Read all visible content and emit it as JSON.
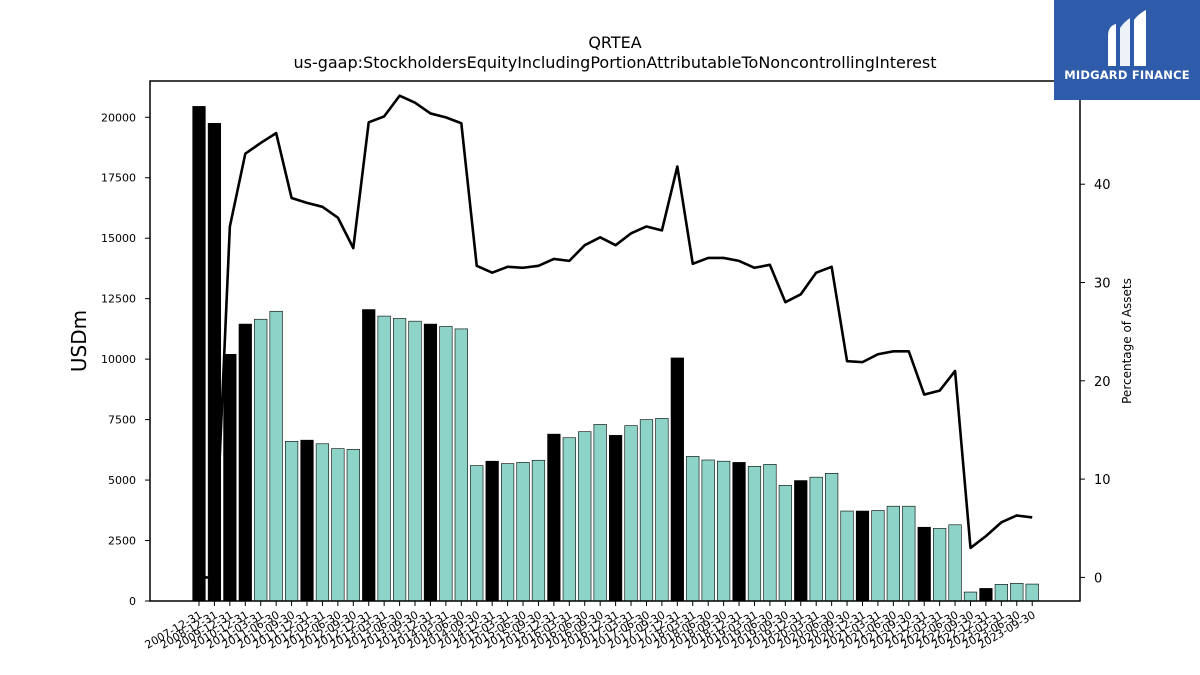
{
  "logo": {
    "text": "MIDGARD FINANCE",
    "bg_color": "#2e5caa"
  },
  "chart_data": {
    "type": "bar",
    "title": "QRTEA",
    "subtitle": "us-gaap:StockholdersEquityIncludingPortionAttributableToNoncontrollingInterest",
    "ylabel": "USDm",
    "ylabel_right": "Percentage of Assets",
    "ylim": [
      0,
      21500
    ],
    "ylim_right": [
      -2.4,
      50.5
    ],
    "yticks": [
      0,
      2500,
      5000,
      7500,
      10000,
      12500,
      15000,
      17500,
      20000
    ],
    "yticks_right": [
      0,
      10,
      20,
      30,
      40
    ],
    "colors": {
      "annual": "#000000",
      "quarterly": "#8dd3c7",
      "line": "#000000"
    },
    "categories": [
      "2007-12-31",
      "2008-12-31",
      "2009-12-31",
      "2010-12-31",
      "2011-03-31",
      "2011-06-30",
      "2011-09-30",
      "2011-12-31",
      "2012-03-31",
      "2012-06-30",
      "2012-09-30",
      "2012-12-31",
      "2013-03-31",
      "2013-06-30",
      "2013-09-30",
      "2013-12-31",
      "2014-03-31",
      "2014-06-30",
      "2014-09-30",
      "2014-12-31",
      "2015-03-31",
      "2015-06-30",
      "2015-09-30",
      "2015-12-31",
      "2016-03-31",
      "2016-06-30",
      "2016-09-30",
      "2016-12-31",
      "2017-03-31",
      "2017-06-30",
      "2017-09-30",
      "2017-12-31",
      "2018-03-31",
      "2018-06-30",
      "2018-09-30",
      "2018-12-31",
      "2019-03-31",
      "2019-06-30",
      "2019-09-30",
      "2019-12-31",
      "2020-03-31",
      "2020-06-30",
      "2020-09-30",
      "2020-12-31",
      "2021-03-31",
      "2021-06-30",
      "2021-09-30",
      "2021-12-31",
      "2022-03-31",
      "2022-06-30",
      "2022-09-30",
      "2022-12-31",
      "2023-03-31",
      "2023-06-30",
      "2023-09-30"
    ],
    "series": [
      {
        "kind": "bar",
        "values": [
          20450,
          19750,
          10200,
          11450,
          11650,
          11980,
          6600,
          6650,
          6500,
          6300,
          6270,
          12050,
          11780,
          11680,
          11570,
          11450,
          11350,
          11250,
          5600,
          5780,
          5680,
          5730,
          5820,
          6900,
          6750,
          7000,
          7300,
          6850,
          7250,
          7500,
          7550,
          10050,
          5980,
          5830,
          5780,
          5730,
          5570,
          5650,
          4780,
          4980,
          5120,
          5280,
          3720,
          3720,
          3740,
          3920,
          3920,
          3050,
          3000,
          3150,
          370,
          520,
          690,
          730,
          700
        ],
        "annual": [
          true,
          true,
          true,
          true,
          false,
          false,
          false,
          true,
          false,
          false,
          false,
          true,
          false,
          false,
          false,
          true,
          false,
          false,
          false,
          true,
          false,
          false,
          false,
          true,
          false,
          false,
          false,
          true,
          false,
          false,
          false,
          true,
          false,
          false,
          false,
          true,
          false,
          false,
          false,
          true,
          false,
          false,
          false,
          true,
          false,
          false,
          false,
          true,
          false,
          false,
          false,
          true,
          false,
          false,
          false
        ]
      },
      {
        "kind": "line",
        "axis": "right",
        "values": [
          0,
          0,
          35.7,
          43.1,
          44.2,
          45.2,
          38.6,
          38.1,
          37.7,
          36.6,
          33.5,
          46.3,
          46.9,
          49.0,
          48.3,
          47.2,
          46.8,
          46.2,
          31.7,
          31.0,
          31.6,
          31.5,
          31.7,
          32.4,
          32.2,
          33.8,
          34.6,
          33.8,
          35.0,
          35.7,
          35.3,
          41.8,
          31.9,
          32.5,
          32.5,
          32.2,
          31.5,
          31.8,
          28.0,
          28.8,
          31.0,
          31.6,
          22.0,
          21.9,
          22.7,
          23.0,
          23.0,
          18.6,
          19.0,
          21.0,
          3.0,
          4.2,
          5.6,
          6.3,
          6.1
        ]
      }
    ]
  }
}
